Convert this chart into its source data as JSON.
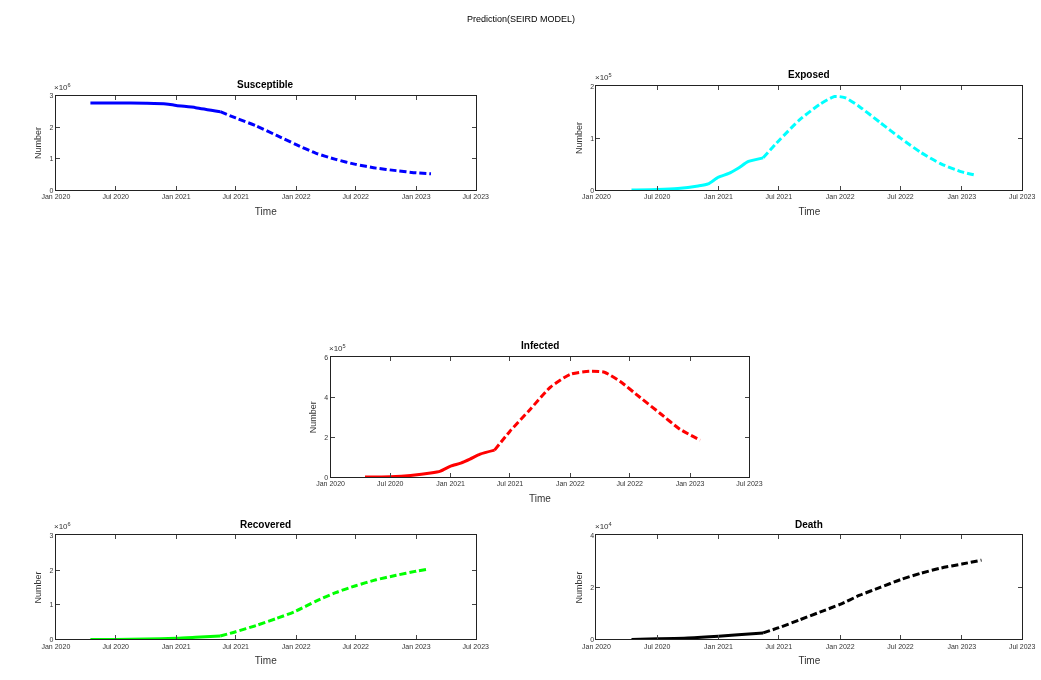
{
  "chart_data": [
    {
      "type": "line",
      "title": "Susceptible",
      "xlabel": "Time",
      "ylabel": "Number",
      "annotations": [
        "Prediction(SEIRD MODEL)",
        "×10$^{6}$"
      ],
      "xlim": [
        "2020-01-01",
        "2023-07-01"
      ],
      "xticks": [
        {
          "value": "2020-01-01",
          "label": "Jan 2020"
        },
        {
          "value": "2020-07-01",
          "label": "Jul 2020"
        },
        {
          "value": "2021-01-01",
          "label": "Jan 2021"
        },
        {
          "value": "2021-07-01",
          "label": "Jul 2021"
        },
        {
          "value": "2022-01-01",
          "label": "Jan 2022"
        },
        {
          "value": "2022-07-01",
          "label": "Jul 2022"
        },
        {
          "value": "2023-01-01",
          "label": "Jan 2023"
        },
        {
          "value": "2023-07-01",
          "label": "Jul 2023"
        }
      ],
      "ylim": [
        0,
        3
      ],
      "yticks": [
        0,
        1,
        2,
        3
      ],
      "series": [
        {
          "color": "#0000ff",
          "line_style": "solid",
          "x": [
            "2020-04-15",
            "2020-07-01",
            "2020-10-01",
            "2020-12-01",
            "2021-01-01",
            "2021-03-01",
            "2021-05-15"
          ],
          "values": [
            2.78,
            2.78,
            2.77,
            2.75,
            2.7,
            2.63,
            2.5
          ]
        },
        {
          "color": "#0000ff",
          "line_style": "dashed",
          "x": [
            "2021-05-15",
            "2021-07-01",
            "2021-09-01",
            "2021-11-01",
            "2022-01-01",
            "2022-03-01",
            "2022-05-01",
            "2022-07-01",
            "2022-09-01",
            "2022-11-01",
            "2023-01-01",
            "2023-02-15"
          ],
          "values": [
            2.5,
            2.3,
            2.05,
            1.75,
            1.45,
            1.18,
            0.98,
            0.82,
            0.7,
            0.62,
            0.55,
            0.52
          ]
        }
      ]
    },
    {
      "type": "line",
      "title": "Exposed",
      "xlabel": "Time",
      "ylabel": "Number",
      "annotations": [
        "×10$^{5}$"
      ],
      "xlim": [
        "2020-01-01",
        "2023-07-01"
      ],
      "xticks": [
        {
          "value": "2020-01-01",
          "label": "Jan 2020"
        },
        {
          "value": "2020-07-01",
          "label": "Jul 2020"
        },
        {
          "value": "2021-01-01",
          "label": "Jan 2021"
        },
        {
          "value": "2021-07-01",
          "label": "Jul 2021"
        },
        {
          "value": "2022-01-01",
          "label": "Jan 2022"
        },
        {
          "value": "2022-07-01",
          "label": "Jul 2022"
        },
        {
          "value": "2023-01-01",
          "label": "Jan 2023"
        },
        {
          "value": "2023-07-01",
          "label": "Jul 2023"
        }
      ],
      "ylim": [
        0,
        2
      ],
      "yticks": [
        0,
        1,
        2
      ],
      "series": [
        {
          "color": "#00ffff",
          "line_style": "solid",
          "x": [
            "2020-04-15",
            "2020-07-01",
            "2020-09-01",
            "2020-11-01",
            "2020-12-01",
            "2021-01-01",
            "2021-02-01",
            "2021-03-01",
            "2021-04-01",
            "2021-05-15"
          ],
          "values": [
            0,
            0.01,
            0.03,
            0.08,
            0.12,
            0.25,
            0.32,
            0.42,
            0.55,
            0.62
          ]
        },
        {
          "color": "#00ffff",
          "line_style": "dashed",
          "x": [
            "2021-05-15",
            "2021-07-01",
            "2021-09-01",
            "2021-11-01",
            "2021-12-15",
            "2022-01-15",
            "2022-03-01",
            "2022-05-01",
            "2022-07-01",
            "2022-09-01",
            "2022-11-01",
            "2023-01-01",
            "2023-02-15"
          ],
          "values": [
            0.62,
            0.95,
            1.35,
            1.65,
            1.8,
            1.78,
            1.6,
            1.3,
            1.0,
            0.72,
            0.5,
            0.35,
            0.28
          ]
        }
      ]
    },
    {
      "type": "line",
      "title": "Infected",
      "xlabel": "Time",
      "ylabel": "Number",
      "annotations": [
        "×10$^{5}$"
      ],
      "xlim": [
        "2020-01-01",
        "2023-07-01"
      ],
      "xticks": [
        {
          "value": "2020-01-01",
          "label": "Jan 2020"
        },
        {
          "value": "2020-07-01",
          "label": "Jul 2020"
        },
        {
          "value": "2021-01-01",
          "label": "Jan 2021"
        },
        {
          "value": "2021-07-01",
          "label": "Jul 2021"
        },
        {
          "value": "2022-01-01",
          "label": "Jan 2022"
        },
        {
          "value": "2022-07-01",
          "label": "Jul 2022"
        },
        {
          "value": "2023-01-01",
          "label": "Jan 2023"
        },
        {
          "value": "2023-07-01",
          "label": "Jul 2023"
        }
      ],
      "ylim": [
        0,
        6
      ],
      "yticks": [
        0,
        2,
        4,
        6
      ],
      "series": [
        {
          "color": "#ff0000",
          "line_style": "solid",
          "x": [
            "2020-04-15",
            "2020-07-01",
            "2020-09-01",
            "2020-11-01",
            "2020-12-01",
            "2021-01-01",
            "2021-02-01",
            "2021-03-01",
            "2021-04-01",
            "2021-05-15"
          ],
          "values": [
            0,
            0.02,
            0.08,
            0.2,
            0.3,
            0.55,
            0.7,
            0.9,
            1.15,
            1.35
          ]
        },
        {
          "color": "#ff0000",
          "line_style": "dashed",
          "x": [
            "2021-05-15",
            "2021-07-01",
            "2021-09-01",
            "2021-11-01",
            "2022-01-01",
            "2022-03-01",
            "2022-04-15",
            "2022-06-01",
            "2022-08-01",
            "2022-10-01",
            "2022-12-01",
            "2023-02-01"
          ],
          "values": [
            1.35,
            2.3,
            3.4,
            4.5,
            5.15,
            5.3,
            5.25,
            4.8,
            4.0,
            3.2,
            2.4,
            1.85
          ]
        }
      ]
    },
    {
      "type": "line",
      "title": "Recovered",
      "xlabel": "Time",
      "ylabel": "Number",
      "annotations": [
        "×10$^{6}$"
      ],
      "xlim": [
        "2020-01-01",
        "2023-07-01"
      ],
      "xticks": [
        {
          "value": "2020-01-01",
          "label": "Jan 2020"
        },
        {
          "value": "2020-07-01",
          "label": "Jul 2020"
        },
        {
          "value": "2021-01-01",
          "label": "Jan 2021"
        },
        {
          "value": "2021-07-01",
          "label": "Jul 2021"
        },
        {
          "value": "2022-01-01",
          "label": "Jan 2022"
        },
        {
          "value": "2022-07-01",
          "label": "Jul 2022"
        },
        {
          "value": "2023-01-01",
          "label": "Jan 2023"
        },
        {
          "value": "2023-07-01",
          "label": "Jul 2023"
        }
      ],
      "ylim": [
        0,
        3
      ],
      "yticks": [
        0,
        1,
        2,
        3
      ],
      "series": [
        {
          "color": "#00ff00",
          "line_style": "solid",
          "x": [
            "2020-04-15",
            "2020-07-01",
            "2020-10-01",
            "2021-01-01",
            "2021-03-01",
            "2021-05-15"
          ],
          "values": [
            0,
            0,
            0.01,
            0.03,
            0.06,
            0.1
          ]
        },
        {
          "color": "#00ff00",
          "line_style": "dashed",
          "x": [
            "2021-05-15",
            "2021-07-01",
            "2021-09-01",
            "2021-11-01",
            "2022-01-01",
            "2022-03-01",
            "2022-05-01",
            "2022-07-01",
            "2022-09-01",
            "2022-11-01",
            "2023-01-01",
            "2023-02-01"
          ],
          "values": [
            0.1,
            0.22,
            0.4,
            0.6,
            0.82,
            1.1,
            1.35,
            1.55,
            1.72,
            1.85,
            1.97,
            2.02
          ]
        }
      ]
    },
    {
      "type": "line",
      "title": "Death",
      "xlabel": "Time",
      "ylabel": "Number",
      "annotations": [
        "×10$^{4}$"
      ],
      "xlim": [
        "2020-01-01",
        "2023-07-01"
      ],
      "xticks": [
        {
          "value": "2020-01-01",
          "label": "Jan 2020"
        },
        {
          "value": "2020-07-01",
          "label": "Jul 2020"
        },
        {
          "value": "2021-01-01",
          "label": "Jan 2021"
        },
        {
          "value": "2021-07-01",
          "label": "Jul 2021"
        },
        {
          "value": "2022-01-01",
          "label": "Jan 2022"
        },
        {
          "value": "2022-07-01",
          "label": "Jul 2022"
        },
        {
          "value": "2023-01-01",
          "label": "Jan 2023"
        },
        {
          "value": "2023-07-01",
          "label": "Jul 2023"
        }
      ],
      "ylim": [
        0,
        4
      ],
      "yticks": [
        0,
        2,
        4
      ],
      "series": [
        {
          "color": "#000000",
          "line_style": "solid",
          "x": [
            "2020-04-15",
            "2020-07-01",
            "2020-10-01",
            "2021-01-01",
            "2021-03-01",
            "2021-05-15"
          ],
          "values": [
            0,
            0.02,
            0.05,
            0.12,
            0.18,
            0.25
          ]
        },
        {
          "color": "#000000",
          "line_style": "dashed",
          "x": [
            "2021-05-15",
            "2021-07-01",
            "2021-09-01",
            "2021-11-01",
            "2022-01-01",
            "2022-03-01",
            "2022-05-01",
            "2022-07-01",
            "2022-09-01",
            "2022-11-01",
            "2023-01-01",
            "2023-03-01"
          ],
          "values": [
            0.25,
            0.45,
            0.75,
            1.05,
            1.35,
            1.7,
            2.0,
            2.3,
            2.55,
            2.75,
            2.9,
            3.05
          ]
        }
      ]
    }
  ]
}
